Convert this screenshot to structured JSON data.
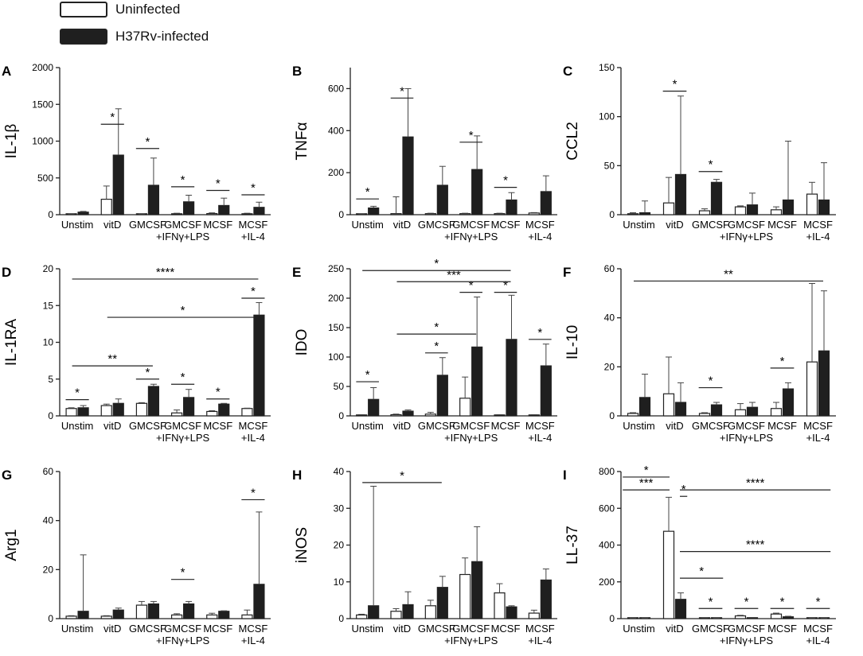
{
  "legend": {
    "uninfected_label": "Uninfected",
    "infected_label": "H37Rv-infected",
    "uninfected_color": "#ffffff",
    "infected_color": "#1f1f1f"
  },
  "chart_data": [
    {
      "type": "bar",
      "panel": "A",
      "ylabel": "IL-1β",
      "ylim": [
        0,
        2000
      ],
      "yticks": [
        0,
        500,
        1000,
        1500,
        2000
      ],
      "categories": [
        [
          "Unstim"
        ],
        [
          "vitD"
        ],
        [
          "GMCSF"
        ],
        [
          "GMCSF",
          "+IFNγ+LPS"
        ],
        [
          "MCSF"
        ],
        [
          "MCSF",
          "+IL-4"
        ]
      ],
      "series": [
        {
          "name": "Uninfected",
          "values": [
            5,
            210,
            5,
            10,
            15,
            10
          ],
          "errors": [
            5,
            180,
            5,
            10,
            10,
            10
          ]
        },
        {
          "name": "H37Rv-infected",
          "values": [
            35,
            810,
            400,
            175,
            125,
            100
          ],
          "errors": [
            10,
            630,
            370,
            90,
            100,
            70
          ]
        }
      ],
      "sig": [
        {
          "label": "*",
          "a": 1,
          "b": 1,
          "y": 1230
        },
        {
          "label": "*",
          "a": 2,
          "b": 2,
          "y": 900
        },
        {
          "label": "*",
          "a": 3,
          "b": 3,
          "y": 380
        },
        {
          "label": "*",
          "a": 4,
          "b": 4,
          "y": 330
        },
        {
          "label": "*",
          "a": 5,
          "b": 5,
          "y": 270
        }
      ]
    },
    {
      "type": "bar",
      "panel": "B",
      "ylabel": "TNFα",
      "ylim": [
        0,
        700
      ],
      "yticks": [
        0,
        200,
        400,
        600
      ],
      "categories": [
        [
          "Unstim"
        ],
        [
          "vitD"
        ],
        [
          "GMCSF"
        ],
        [
          "GMCSF",
          "+IFNγ+LPS"
        ],
        [
          "MCSF"
        ],
        [
          "MCSF",
          "+IL-4"
        ]
      ],
      "series": [
        {
          "name": "Uninfected",
          "values": [
            2,
            5,
            5,
            5,
            5,
            8
          ],
          "errors": [
            2,
            80,
            2,
            2,
            2,
            2
          ]
        },
        {
          "name": "H37Rv-infected",
          "values": [
            32,
            370,
            140,
            215,
            70,
            110
          ],
          "errors": [
            8,
            230,
            90,
            160,
            35,
            75
          ]
        }
      ],
      "sig": [
        {
          "label": "*",
          "a": 0,
          "b": 0,
          "y": 75
        },
        {
          "label": "*",
          "a": 1,
          "b": 1,
          "y": 555
        },
        {
          "label": "*",
          "a": 3,
          "b": 3,
          "y": 345
        },
        {
          "label": "*",
          "a": 4,
          "b": 4,
          "y": 130
        }
      ]
    },
    {
      "type": "bar",
      "panel": "C",
      "ylabel": "CCL2",
      "ylim": [
        0,
        150
      ],
      "yticks": [
        0,
        50,
        100,
        150
      ],
      "categories": [
        [
          "Unstim"
        ],
        [
          "vitD"
        ],
        [
          "GMCSF"
        ],
        [
          "GMCSF",
          "+IFNγ+LPS"
        ],
        [
          "MCSF"
        ],
        [
          "MCSF",
          "+IL-4"
        ]
      ],
      "series": [
        {
          "name": "Uninfected",
          "values": [
            1,
            12,
            4,
            8,
            5,
            21
          ],
          "errors": [
            1,
            26,
            2,
            1,
            3,
            12
          ]
        },
        {
          "name": "H37Rv-infected",
          "values": [
            2,
            41,
            33,
            10,
            15,
            15
          ],
          "errors": [
            12,
            80,
            3,
            12,
            60,
            38
          ]
        }
      ],
      "sig": [
        {
          "label": "*",
          "a": 1,
          "b": 1,
          "y": 126
        },
        {
          "label": "*",
          "a": 2,
          "b": 2,
          "y": 44
        }
      ]
    },
    {
      "type": "bar",
      "panel": "D",
      "ylabel": "IL-1RA",
      "ylim": [
        0,
        20
      ],
      "yticks": [
        0,
        5,
        10,
        15,
        20
      ],
      "categories": [
        [
          "Unstim"
        ],
        [
          "vitD"
        ],
        [
          "GMCSF"
        ],
        [
          "GMCSF",
          "+IFNγ+LPS"
        ],
        [
          "MCSF"
        ],
        [
          "MCSF",
          "+IL-4"
        ]
      ],
      "series": [
        {
          "name": "Uninfected",
          "values": [
            1,
            1.4,
            1.7,
            0.4,
            0.6,
            1.0
          ],
          "errors": [
            0.1,
            0.2,
            0.1,
            0.4,
            0.1,
            0.05
          ]
        },
        {
          "name": "H37Rv-infected",
          "values": [
            1.1,
            1.7,
            4.0,
            2.5,
            1.6,
            13.7
          ],
          "errors": [
            0.3,
            0.6,
            0.3,
            1.1,
            0.1,
            1.7
          ]
        }
      ],
      "sig": [
        {
          "label": "*",
          "a": 0,
          "b": 0,
          "y": 2.2
        },
        {
          "label": "*",
          "a": 2,
          "b": 2,
          "y": 5.0
        },
        {
          "label": "*",
          "a": 3,
          "b": 3,
          "y": 4.3
        },
        {
          "label": "*",
          "a": 4,
          "b": 4,
          "y": 2.3
        },
        {
          "label": "*",
          "a": 5,
          "b": 5,
          "y": 16.0
        },
        {
          "label": "**",
          "a": 0,
          "b": 2,
          "y": 6.8
        },
        {
          "label": "*",
          "a": 1,
          "b": 5,
          "y": 13.4
        },
        {
          "label": "****",
          "a": 0,
          "b": 5,
          "y": 18.6
        }
      ]
    },
    {
      "type": "bar",
      "panel": "E",
      "ylabel": "IDO",
      "ylim": [
        0,
        250
      ],
      "yticks": [
        0,
        50,
        100,
        150,
        200,
        250
      ],
      "categories": [
        [
          "Unstim"
        ],
        [
          "vitD"
        ],
        [
          "GMCSF"
        ],
        [
          "GMCSF",
          "+IFNγ+LPS"
        ],
        [
          "MCSF"
        ],
        [
          "MCSF",
          "+IL-4"
        ]
      ],
      "series": [
        {
          "name": "Uninfected",
          "values": [
            1,
            2,
            3,
            30,
            1,
            1
          ],
          "errors": [
            1,
            1,
            3,
            36,
            1,
            1
          ]
        },
        {
          "name": "H37Rv-infected",
          "values": [
            28,
            8,
            69,
            117,
            130,
            85
          ],
          "errors": [
            20,
            2,
            30,
            85,
            75,
            37
          ]
        }
      ],
      "sig": [
        {
          "label": "*",
          "a": 0,
          "b": 0,
          "y": 58
        },
        {
          "label": "*",
          "a": 2,
          "b": 2,
          "y": 107
        },
        {
          "label": "*",
          "a": 3,
          "b": 3,
          "y": 210
        },
        {
          "label": "*",
          "a": 4,
          "b": 4,
          "y": 210
        },
        {
          "label": "*",
          "a": 5,
          "b": 5,
          "y": 130
        },
        {
          "label": "*",
          "a": 1,
          "b": 3,
          "y": 139
        },
        {
          "label": "***",
          "a": 1,
          "b": 4,
          "y": 228
        },
        {
          "label": "*",
          "a": 0,
          "b": 4,
          "y": 247
        }
      ]
    },
    {
      "type": "bar",
      "panel": "F",
      "ylabel": "IL-10",
      "ylim": [
        0,
        60
      ],
      "yticks": [
        0,
        20,
        40,
        60
      ],
      "categories": [
        [
          "Unstim"
        ],
        [
          "vitD"
        ],
        [
          "GMCSF"
        ],
        [
          "GMCSF",
          "+IFNγ+LPS"
        ],
        [
          "MCSF"
        ],
        [
          "MCSF",
          "+IL-4"
        ]
      ],
      "series": [
        {
          "name": "Uninfected",
          "values": [
            1,
            9,
            1,
            2.5,
            3,
            22
          ],
          "errors": [
            0.3,
            15,
            0.3,
            2.5,
            2.5,
            32
          ]
        },
        {
          "name": "H37Rv-infected",
          "values": [
            7.5,
            5.5,
            4.5,
            3.5,
            11,
            26.5
          ],
          "errors": [
            9.5,
            8,
            1,
            2,
            2.5,
            24.5
          ]
        }
      ],
      "sig": [
        {
          "label": "*",
          "a": 2,
          "b": 2,
          "y": 11.5
        },
        {
          "label": "*",
          "a": 4,
          "b": 4,
          "y": 19.5
        },
        {
          "label": "**",
          "a": 0,
          "b": 5,
          "y": 55
        }
      ]
    },
    {
      "type": "bar",
      "panel": "G",
      "ylabel": "Arg1",
      "ylim": [
        0,
        60
      ],
      "yticks": [
        0,
        20,
        40,
        60
      ],
      "categories": [
        [
          "Unstim"
        ],
        [
          "vitD"
        ],
        [
          "GMCSF"
        ],
        [
          "GMCSF",
          "+IFNγ+LPS"
        ],
        [
          "MCSF"
        ],
        [
          "MCSF",
          "+IL-4"
        ]
      ],
      "series": [
        {
          "name": "Uninfected",
          "values": [
            1,
            1,
            5.5,
            1.5,
            1.5,
            1.5
          ],
          "errors": [
            0.2,
            0.2,
            1.5,
            0.5,
            0.7,
            2
          ]
        },
        {
          "name": "H37Rv-infected",
          "values": [
            3,
            3.5,
            6,
            6,
            3,
            14
          ],
          "errors": [
            23,
            0.8,
            1,
            1,
            0.2,
            29.5
          ]
        }
      ],
      "sig": [
        {
          "label": "*",
          "a": 3,
          "b": 3,
          "y": 16
        },
        {
          "label": "*",
          "a": 5,
          "b": 5,
          "y": 48.5
        }
      ]
    },
    {
      "type": "bar",
      "panel": "H",
      "ylabel": "iNOS",
      "ylim": [
        0,
        40
      ],
      "yticks": [
        0,
        10,
        20,
        30,
        40
      ],
      "categories": [
        [
          "Unstim"
        ],
        [
          "vitD"
        ],
        [
          "GMCSF"
        ],
        [
          "GMCSF",
          "+IFNγ+LPS"
        ],
        [
          "MCSF"
        ],
        [
          "MCSF",
          "+IL-4"
        ]
      ],
      "series": [
        {
          "name": "Uninfected",
          "values": [
            1,
            2,
            3.5,
            12,
            7,
            1.5
          ],
          "errors": [
            0.2,
            0.7,
            1.5,
            4.5,
            2.5,
            0.8
          ]
        },
        {
          "name": "H37Rv-infected",
          "values": [
            3.5,
            3.8,
            8.5,
            15.5,
            3.2,
            10.5
          ],
          "errors": [
            32.5,
            3.5,
            3,
            9.5,
            0.3,
            3
          ]
        }
      ],
      "sig": [
        {
          "label": "*",
          "a": 0,
          "b": 2,
          "y": 37
        }
      ]
    },
    {
      "type": "bar",
      "panel": "I",
      "ylabel": "LL-37",
      "ylim": [
        0,
        800
      ],
      "yticks": [
        0,
        200,
        400,
        600,
        800
      ],
      "categories": [
        [
          "Unstim"
        ],
        [
          "vitD"
        ],
        [
          "GMCSF"
        ],
        [
          "GMCSF",
          "+IFNγ+LPS"
        ],
        [
          "MCSF"
        ],
        [
          "MCSF",
          "+IL-4"
        ]
      ],
      "series": [
        {
          "name": "Uninfected",
          "values": [
            2,
            475,
            3,
            15,
            25,
            2
          ],
          "errors": [
            1,
            185,
            2,
            3,
            5,
            1
          ]
        },
        {
          "name": "H37Rv-infected",
          "values": [
            2,
            105,
            2,
            5,
            10,
            2
          ],
          "errors": [
            1,
            35,
            1,
            1,
            3,
            1
          ]
        }
      ],
      "sig": [
        {
          "label": "*",
          "a": 0,
          "b": 1,
          "y": 770,
          "pos": "left"
        },
        {
          "label": "***",
          "a": 0,
          "b": 1,
          "y": 700,
          "pos": "left"
        },
        {
          "label": "*",
          "a": 1,
          "b": 1,
          "y": 665,
          "pos": "right"
        },
        {
          "label": "****",
          "a": 1,
          "b": 5,
          "y": 700,
          "pos": "right"
        },
        {
          "label": "****",
          "a": 1,
          "b": 5,
          "y": 365,
          "pos": "right"
        },
        {
          "label": "*",
          "a": 1,
          "b": 2,
          "y": 220,
          "pos": "right"
        },
        {
          "label": "*",
          "a": 2,
          "b": 2,
          "y": 55
        },
        {
          "label": "*",
          "a": 3,
          "b": 3,
          "y": 55
        },
        {
          "label": "*",
          "a": 4,
          "b": 4,
          "y": 55
        },
        {
          "label": "*",
          "a": 5,
          "b": 5,
          "y": 55
        }
      ]
    }
  ]
}
